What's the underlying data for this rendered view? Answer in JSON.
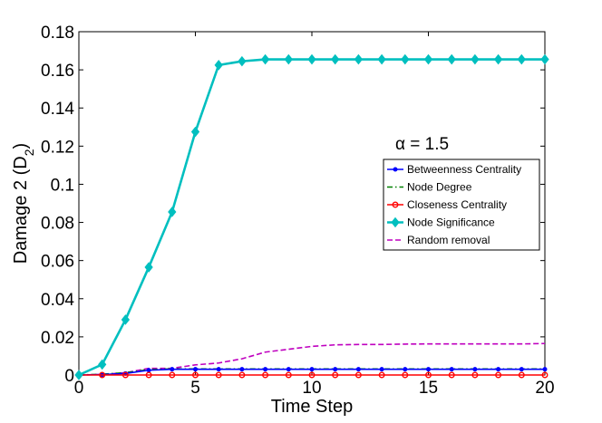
{
  "chart_data": {
    "type": "line",
    "title": "",
    "xlabel": "Time Step",
    "ylabel": "Damage 2 (D",
    "ylabel_subscript": "2",
    "ylabel_suffix": ")",
    "annotation": "α = 1.5",
    "xlim": [
      0,
      20
    ],
    "ylim": [
      0,
      0.18
    ],
    "xticks": [
      0,
      5,
      10,
      15,
      20
    ],
    "xtick_labels": [
      "0",
      "5",
      "10",
      "15",
      "20"
    ],
    "yticks": [
      0,
      0.02,
      0.04,
      0.06,
      0.08,
      0.1,
      0.12,
      0.14,
      0.16,
      0.18
    ],
    "ytick_labels": [
      "0",
      "0.02",
      "0.04",
      "0.06",
      "0.08",
      "0.1",
      "0.12",
      "0.14",
      "0.16",
      "0.18"
    ],
    "grid": false,
    "legend_position": "right",
    "x": [
      0,
      1,
      2,
      3,
      4,
      5,
      6,
      7,
      8,
      9,
      10,
      11,
      12,
      13,
      14,
      15,
      16,
      17,
      18,
      19,
      20
    ],
    "series": [
      {
        "name": "Betweenness Centrality",
        "color": "#0000ff",
        "dash": "solid",
        "marker": "dot",
        "values": [
          0,
          0.0002,
          0.0008,
          0.0025,
          0.003,
          0.003,
          0.003,
          0.003,
          0.003,
          0.003,
          0.003,
          0.003,
          0.003,
          0.003,
          0.003,
          0.003,
          0.003,
          0.003,
          0.003,
          0.003,
          0.003
        ]
      },
      {
        "name": "Node Degree",
        "color": "#008000",
        "dash": "dashdot",
        "marker": "none",
        "values": [
          0,
          0.0004,
          0.0012,
          0.0028,
          0.0032,
          0.0032,
          0.0032,
          0.0032,
          0.0032,
          0.0032,
          0.0032,
          0.0032,
          0.0032,
          0.0032,
          0.0032,
          0.0032,
          0.0032,
          0.0032,
          0.0032,
          0.0032,
          0.0032
        ]
      },
      {
        "name": "Closeness Centrality",
        "color": "#ff0000",
        "dash": "solid",
        "marker": "circle",
        "values": [
          0,
          0,
          0,
          0,
          0,
          0,
          0,
          0,
          0,
          0,
          0,
          0,
          0,
          0,
          0,
          0,
          0,
          0,
          0,
          0,
          0
        ]
      },
      {
        "name": "Node Significance",
        "color": "#00bfbf",
        "dash": "solid",
        "marker": "diamond",
        "values": [
          0,
          0.0055,
          0.029,
          0.0565,
          0.0855,
          0.1275,
          0.1625,
          0.1645,
          0.1655,
          0.1655,
          0.1655,
          0.1655,
          0.1655,
          0.1655,
          0.1655,
          0.1655,
          0.1655,
          0.1655,
          0.1655,
          0.1655,
          0.1655
        ]
      },
      {
        "name": "Random removal",
        "color": "#bf00bf",
        "dash": "dashed",
        "marker": "none",
        "values": [
          0,
          0.0003,
          0.0012,
          0.0035,
          0.0035,
          0.0053,
          0.0063,
          0.0085,
          0.012,
          0.0135,
          0.015,
          0.0158,
          0.016,
          0.016,
          0.0162,
          0.0163,
          0.0163,
          0.0163,
          0.0163,
          0.0163,
          0.0165
        ]
      }
    ]
  }
}
